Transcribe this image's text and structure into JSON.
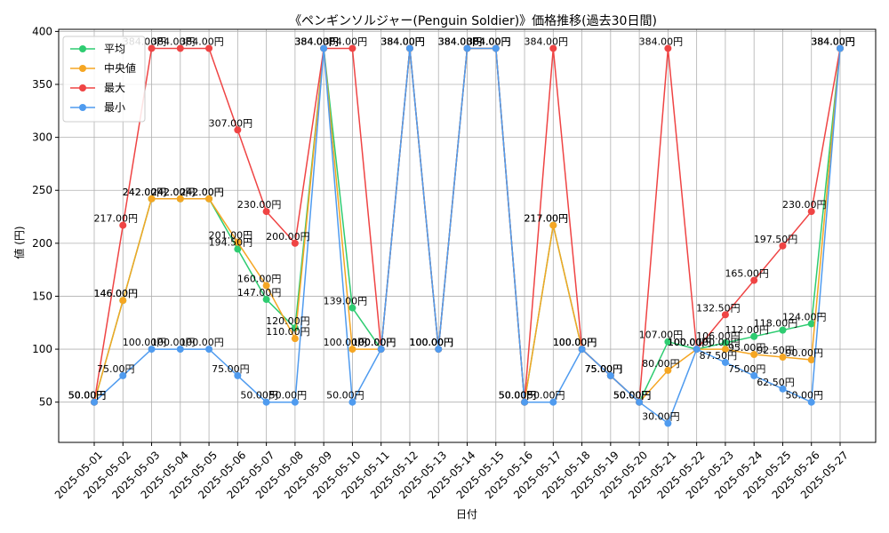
{
  "chart_data": {
    "type": "line",
    "title": "《ペンギンソルジャー(Penguin Soldier)》価格推移(過去30日間)",
    "xlabel": "日付",
    "ylabel": "値 (円)",
    "ylim": [
      12,
      402
    ],
    "yticks": [
      50,
      100,
      150,
      200,
      250,
      300,
      350,
      400
    ],
    "grid": true,
    "legend_position": "top-left",
    "label_suffix": "円",
    "categories": [
      "2025-05-01",
      "2025-05-02",
      "2025-05-03",
      "2025-05-04",
      "2025-05-05",
      "2025-05-06",
      "2025-05-07",
      "2025-05-08",
      "2025-05-09",
      "2025-05-10",
      "2025-05-11",
      "2025-05-12",
      "2025-05-13",
      "2025-05-14",
      "2025-05-15",
      "2025-05-16",
      "2025-05-17",
      "2025-05-18",
      "2025-05-19",
      "2025-05-20",
      "2025-05-21",
      "2025-05-22",
      "2025-05-23",
      "2025-05-24",
      "2025-05-25",
      "2025-05-26",
      "2025-05-27"
    ],
    "series": [
      {
        "name": "平均",
        "color": "#2ecc71",
        "values": [
          50,
          146,
          242,
          242,
          242,
          194.5,
          147,
          120,
          384,
          139,
          100,
          384,
          100,
          384,
          384,
          50,
          217,
          100,
          75,
          50,
          107,
          100,
          106,
          112,
          118,
          124,
          384
        ]
      },
      {
        "name": "中央値",
        "color": "#f5a623",
        "values": [
          50,
          146,
          242,
          242,
          242,
          201,
          160,
          110,
          384,
          100,
          100,
          384,
          100,
          384,
          384,
          50,
          217,
          100,
          75,
          50,
          80,
          100,
          100,
          95,
          92.5,
          90,
          384
        ]
      },
      {
        "name": "最大",
        "color": "#ef4444",
        "values": [
          50,
          217,
          384,
          384,
          384,
          307,
          230,
          200,
          384,
          384,
          100,
          384,
          100,
          384,
          384,
          50,
          384,
          100,
          75,
          50,
          384,
          100,
          132.5,
          165,
          197.5,
          230,
          384
        ]
      },
      {
        "name": "最小",
        "color": "#4f9bef",
        "values": [
          50,
          75,
          100,
          100,
          100,
          75,
          50,
          50,
          384,
          50,
          100,
          384,
          100,
          384,
          384,
          50,
          50,
          100,
          75,
          50,
          30,
          100,
          87.5,
          75,
          62.5,
          50,
          384
        ]
      }
    ]
  }
}
